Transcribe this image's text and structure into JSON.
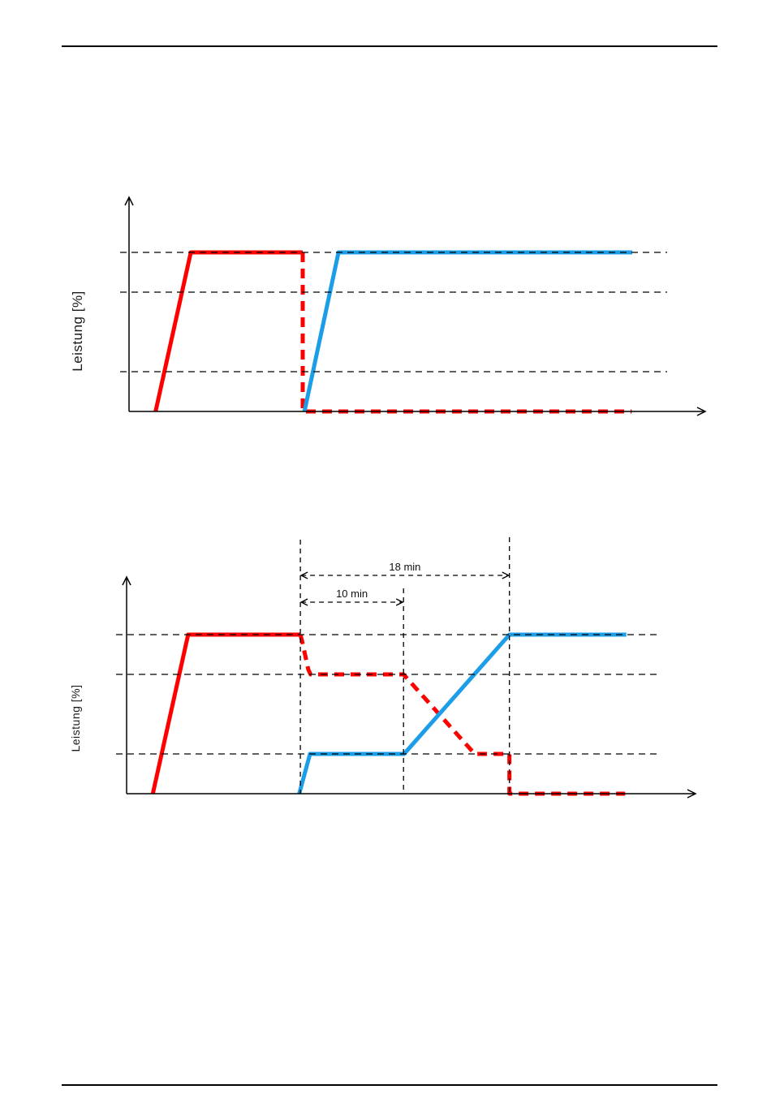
{
  "page": {
    "background": "#ffffff",
    "rule_color": "#000000"
  },
  "colors": {
    "red_series": "#ff0000",
    "blue_series": "#1b9de8",
    "linework": "#000000"
  },
  "chart_data": [
    {
      "type": "line",
      "title": "",
      "xlabel": "",
      "ylabel": "Leistung  [%]",
      "ylim": [
        0,
        100
      ],
      "grid": "dashed-horizontal",
      "grid_levels": [
        100,
        75,
        25
      ],
      "x_unit": "percent-of-time-axis",
      "series": [
        {
          "name": "red-line-ramp-and-plateau",
          "color": "#ff0000",
          "style": "solid",
          "points": [
            [
              4.6,
              0
            ],
            [
              10.7,
              100
            ],
            [
              30.1,
              100
            ]
          ]
        },
        {
          "name": "red-dashed-shutoff-and-zero",
          "color": "#ff0000",
          "style": "dashed",
          "points": [
            [
              30.1,
              100
            ],
            [
              30.1,
              0
            ],
            [
              87.1,
              0
            ]
          ]
        },
        {
          "name": "blue-line-ramp-and-plateau",
          "color": "#1b9de8",
          "style": "solid",
          "points": [
            [
              30.4,
              0
            ],
            [
              36.3,
              100
            ],
            [
              87.2,
              100
            ]
          ]
        }
      ],
      "markers": [],
      "annotations": []
    },
    {
      "type": "line",
      "title": "",
      "xlabel": "",
      "ylabel": "Leistung  [%]",
      "ylim": [
        0,
        100
      ],
      "grid": "dashed-horizontal",
      "grid_levels": [
        100,
        75,
        25
      ],
      "x_unit": "percent-of-time-axis",
      "series": [
        {
          "name": "red-line-ramp-and-plateau",
          "color": "#ff0000",
          "style": "solid",
          "points": [
            [
              4.6,
              0
            ],
            [
              10.8,
              100
            ],
            [
              30.5,
              100
            ]
          ]
        },
        {
          "name": "red-dashed-rampdown-to-zero",
          "color": "#ff0000",
          "style": "dashed",
          "points": [
            [
              30.5,
              100
            ],
            [
              30.8,
              96
            ],
            [
              31.9,
              78
            ],
            [
              32.3,
              75
            ],
            [
              48.6,
              75
            ],
            [
              61.1,
              25
            ],
            [
              67.2,
              25
            ],
            [
              67.2,
              0
            ],
            [
              87.5,
              0
            ]
          ]
        },
        {
          "name": "blue-line-ramp-and-plateau",
          "color": "#1b9de8",
          "style": "solid",
          "points": [
            [
              30.3,
              0
            ],
            [
              32.2,
              25
            ],
            [
              48.7,
              25
            ],
            [
              67.2,
              100
            ],
            [
              87.7,
              100
            ]
          ]
        }
      ],
      "markers": [
        {
          "x": 30.5
        },
        {
          "x": 48.6
        },
        {
          "x": 67.2
        }
      ],
      "annotations": [
        {
          "label": "18 min",
          "from_marker": 0,
          "to_marker": 2
        },
        {
          "label": "10 min",
          "from_marker": 0,
          "to_marker": 1
        }
      ]
    }
  ]
}
